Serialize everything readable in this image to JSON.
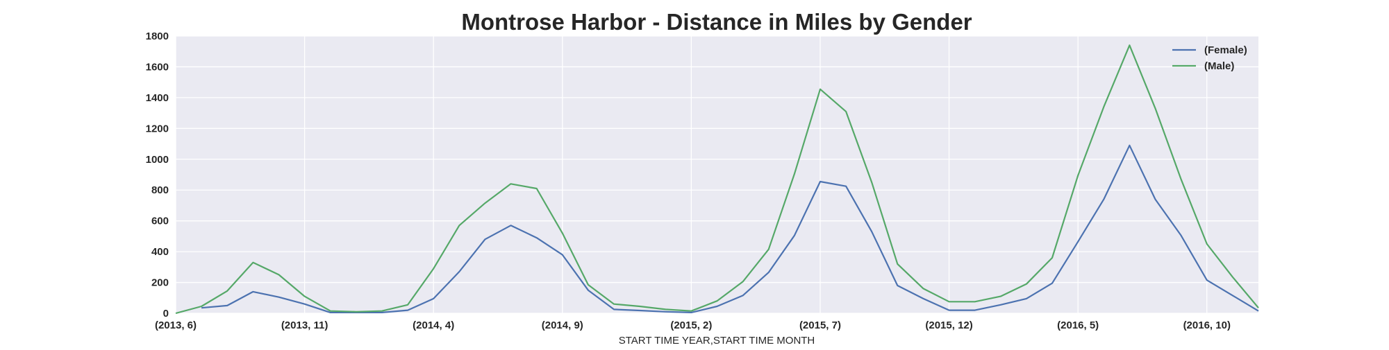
{
  "chart_data": {
    "type": "line",
    "title": "Montrose Harbor - Distance in Miles by Gender",
    "xlabel": "START TIME YEAR,START TIME MONTH",
    "ylabel": "",
    "x": [
      "(2013, 6)",
      "(2013, 7)",
      "(2013, 8)",
      "(2013, 9)",
      "(2013, 10)",
      "(2013, 11)",
      "(2013, 12)",
      "(2014, 1)",
      "(2014, 2)",
      "(2014, 3)",
      "(2014, 4)",
      "(2014, 5)",
      "(2014, 6)",
      "(2014, 7)",
      "(2014, 8)",
      "(2014, 9)",
      "(2014, 10)",
      "(2014, 11)",
      "(2014, 12)",
      "(2015, 1)",
      "(2015, 2)",
      "(2015, 3)",
      "(2015, 4)",
      "(2015, 5)",
      "(2015, 6)",
      "(2015, 7)",
      "(2015, 8)",
      "(2015, 9)",
      "(2015, 10)",
      "(2015, 11)",
      "(2015, 12)",
      "(2016, 1)",
      "(2016, 2)",
      "(2016, 3)",
      "(2016, 4)",
      "(2016, 5)",
      "(2016, 6)",
      "(2016, 7)",
      "(2016, 8)",
      "(2016, 9)",
      "(2016, 10)",
      "(2016, 11)",
      "(2016, 12)"
    ],
    "x_tick_labels": [
      "(2013, 6)",
      "(2013, 11)",
      "(2014, 4)",
      "(2014, 9)",
      "(2015, 2)",
      "(2015, 7)",
      "(2015, 12)",
      "(2016, 5)",
      "(2016, 10)"
    ],
    "y_ticks": [
      0,
      200,
      400,
      600,
      800,
      1000,
      1200,
      1400,
      1600,
      1800
    ],
    "ylim": [
      0,
      1800
    ],
    "grid": true,
    "legend_position": "top-right",
    "series": [
      {
        "name": "(Female)",
        "color": "#4c72b0",
        "values": [
          null,
          35,
          50,
          140,
          105,
          60,
          5,
          5,
          5,
          20,
          95,
          270,
          480,
          570,
          490,
          380,
          150,
          25,
          18,
          10,
          5,
          45,
          115,
          265,
          505,
          855,
          825,
          530,
          180,
          95,
          20,
          20,
          55,
          95,
          195,
          465,
          740,
          1090,
          740,
          505,
          215,
          115,
          15
        ]
      },
      {
        "name": "(Male)",
        "color": "#55a868",
        "values": [
          0,
          45,
          145,
          330,
          250,
          110,
          15,
          10,
          15,
          55,
          290,
          570,
          715,
          840,
          810,
          520,
          185,
          60,
          45,
          25,
          15,
          80,
          205,
          415,
          905,
          1455,
          1310,
          850,
          320,
          160,
          75,
          75,
          110,
          190,
          360,
          895,
          1340,
          1740,
          1330,
          870,
          450,
          235,
          35
        ]
      }
    ]
  }
}
